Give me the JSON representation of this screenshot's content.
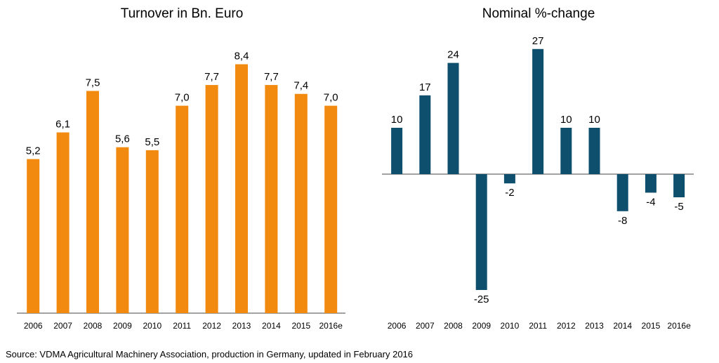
{
  "chart_data": [
    {
      "type": "bar",
      "title": "Turnover in Bn. Euro",
      "categories": [
        "2006",
        "2007",
        "2008",
        "2009",
        "2010",
        "2011",
        "2012",
        "2013",
        "2014",
        "2015",
        "2016e"
      ],
      "values": [
        5.2,
        6.1,
        7.5,
        5.6,
        5.5,
        7.0,
        7.7,
        8.4,
        7.7,
        7.4,
        7.0
      ],
      "data_labels": [
        "5,2",
        "6,1",
        "7,5",
        "5,6",
        "5,5",
        "7,0",
        "7,7",
        "8,4",
        "7,7",
        "7,4",
        "7,0"
      ],
      "color": "#F28A0F",
      "ylim": [
        0,
        10
      ],
      "grid": false,
      "legend": "none"
    },
    {
      "type": "bar",
      "title": "Nominal %-change",
      "categories": [
        "2006",
        "2007",
        "2008",
        "2009",
        "2010",
        "2011",
        "2012",
        "2013",
        "2014",
        "2015",
        "2016e"
      ],
      "values": [
        10,
        17,
        24,
        -25,
        -2,
        27,
        10,
        10,
        -8,
        -4,
        -5
      ],
      "data_labels": [
        "10",
        "17",
        "24",
        "-25",
        "-2",
        "27",
        "10",
        "10",
        "-8",
        "-4",
        "-5"
      ],
      "color": "#0E4F6E",
      "ylim": [
        -25,
        27
      ],
      "grid": false,
      "legend": "none"
    }
  ],
  "source": "Source: VDMA Agricultural Machinery Association, production in Germany, updated in February 2016"
}
